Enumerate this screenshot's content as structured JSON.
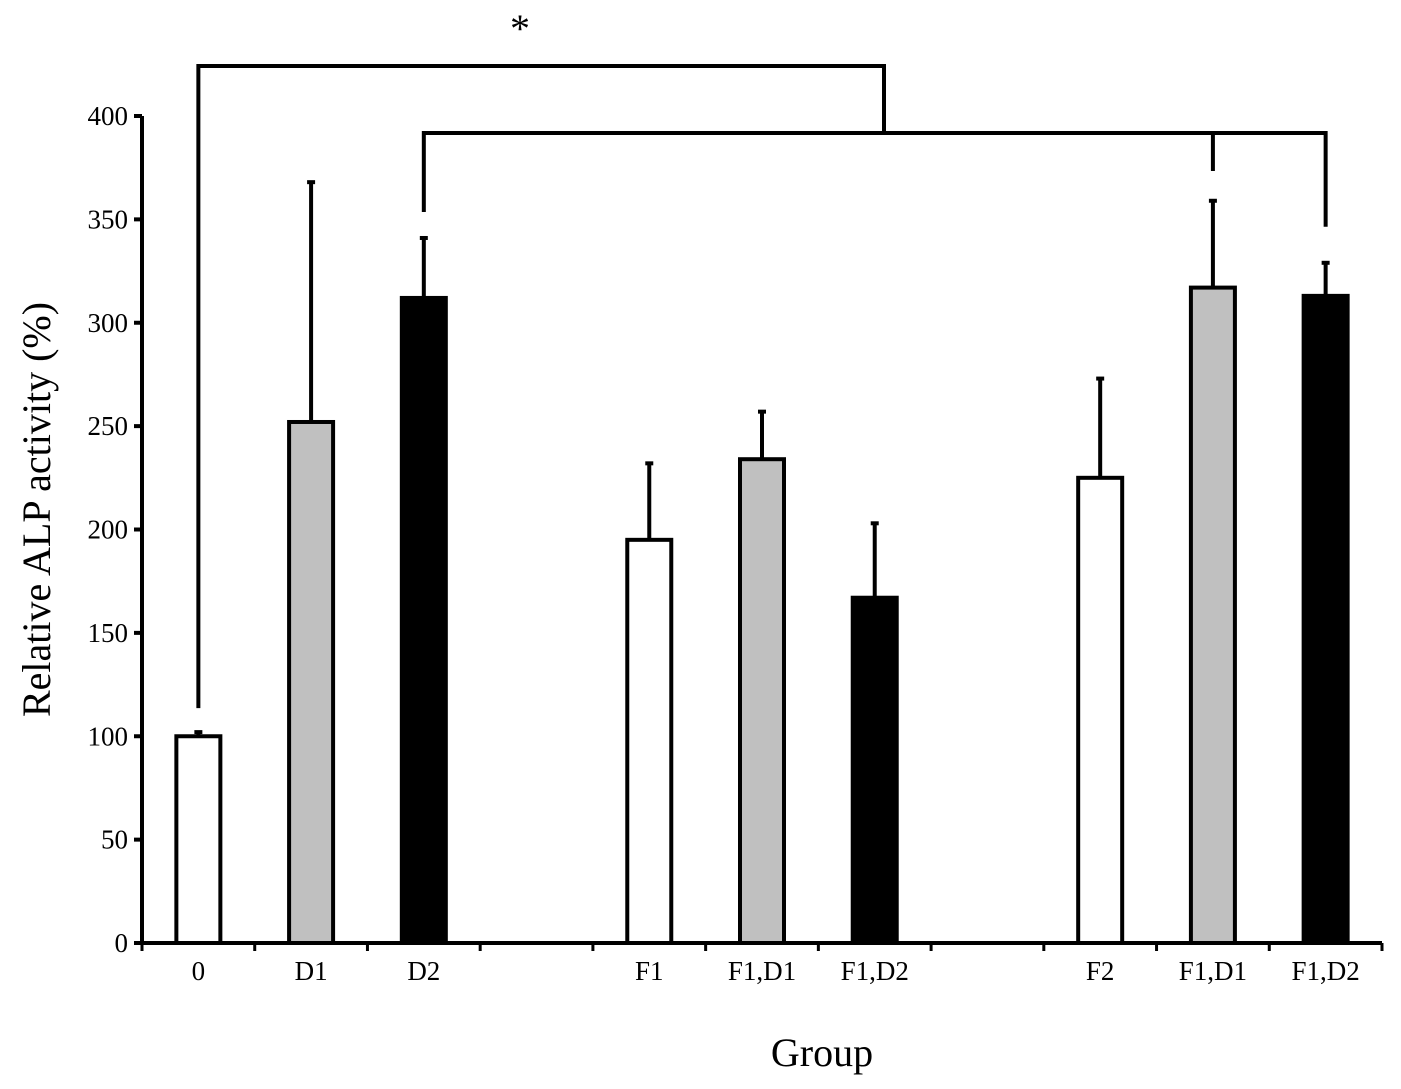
{
  "chart_data": {
    "type": "bar",
    "title": "",
    "xlabel": "Group",
    "ylabel": "Relative ALP activity (%)",
    "ylim": [
      0,
      400
    ],
    "yticks": [
      0,
      50,
      100,
      150,
      200,
      250,
      300,
      350,
      400
    ],
    "grid": false,
    "legend": "none",
    "colors": {
      "white": "#ffffff",
      "gray": "#c0c0c0",
      "black": "#000000",
      "outline": "#000000"
    },
    "bars": [
      {
        "category": "0",
        "value": 100,
        "error": 2,
        "color": "white"
      },
      {
        "category": "D1",
        "value": 252,
        "error": 116,
        "color": "gray"
      },
      {
        "category": "D2",
        "value": 312,
        "error": 29,
        "color": "black"
      },
      {
        "category": "",
        "value": null,
        "error": null,
        "color": null
      },
      {
        "category": "F1",
        "value": 195,
        "error": 37,
        "color": "white"
      },
      {
        "category": "F1,D1",
        "value": 234,
        "error": 23,
        "color": "gray"
      },
      {
        "category": "F1,D2",
        "value": 167,
        "error": 36,
        "color": "black"
      },
      {
        "category": "",
        "value": null,
        "error": null,
        "color": null
      },
      {
        "category": "F2",
        "value": 225,
        "error": 48,
        "color": "white"
      },
      {
        "category": "F1,D1",
        "value": 317,
        "error": 42,
        "color": "gray"
      },
      {
        "category": "F1,D2",
        "value": 313,
        "error": 16,
        "color": "black"
      }
    ],
    "annotations": [
      {
        "text": "*",
        "type": "significance"
      }
    ]
  }
}
